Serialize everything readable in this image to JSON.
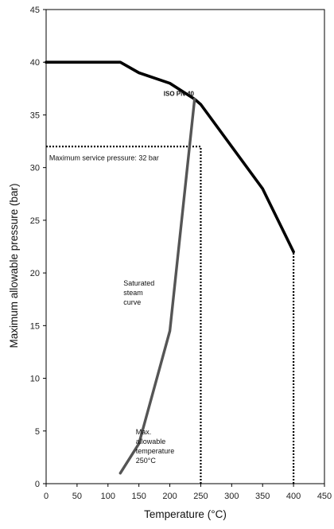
{
  "chart_data": {
    "type": "line",
    "xlabel": "Temperature (°C)",
    "ylabel": "Maximum allowable pressure (bar)",
    "xlim": [
      0,
      450
    ],
    "ylim": [
      0,
      45
    ],
    "xticks": [
      0,
      50,
      100,
      150,
      200,
      250,
      300,
      350,
      400,
      450
    ],
    "yticks": [
      0,
      5,
      10,
      15,
      20,
      25,
      30,
      35,
      40,
      45
    ],
    "grid": false,
    "colors": {
      "iso": "#000000",
      "steam": "#555555",
      "guide": "#000000"
    },
    "series": [
      {
        "name": "ISO PN 40",
        "x": [
          0,
          120,
          150,
          200,
          240,
          250,
          300,
          350,
          400
        ],
        "y": [
          40,
          40,
          39,
          38,
          36.5,
          36,
          32,
          28,
          22
        ]
      },
      {
        "name": "Saturated steam curve",
        "x": [
          120,
          150,
          200,
          240
        ],
        "y": [
          1,
          3.8,
          14.5,
          36.5
        ]
      }
    ],
    "reference_lines": [
      {
        "kind": "horizontal",
        "y": 32,
        "x_from": 0,
        "x_to": 250
      },
      {
        "kind": "vertical",
        "x": 250,
        "y_from": 0,
        "y_to": 32
      },
      {
        "kind": "vertical",
        "x": 400,
        "y_from": 0,
        "y_to": 22
      }
    ],
    "annotations": [
      {
        "text": "ISO PN 40",
        "x": 190,
        "y": 36.8
      },
      {
        "text": "Maximum service pressure: 32 bar",
        "x": 5,
        "y": 30.7
      },
      {
        "lines": [
          "Saturated",
          "steam",
          "curve"
        ],
        "x": 125,
        "y": 18.8
      },
      {
        "lines": [
          "Max.",
          "allowable",
          "temperature",
          "250°C"
        ],
        "x": 145,
        "y": 4.7
      }
    ]
  }
}
